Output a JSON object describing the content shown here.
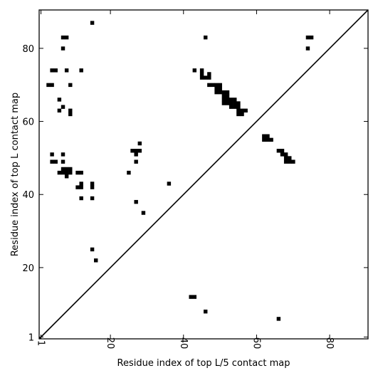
{
  "chart_data": {
    "type": "scatter",
    "xlabel": "Residue index of top L/5 contact map",
    "ylabel": "Residue index of top L contact map",
    "xlim": [
      0.5,
      90.5
    ],
    "ylim": [
      0.5,
      90.5
    ],
    "xticks": [
      1,
      20,
      40,
      60,
      80
    ],
    "yticks": [
      1,
      20,
      40,
      60,
      80
    ],
    "grid": false,
    "diagonal": true,
    "marker_color": "#000000",
    "upper_triangle": [
      [
        15,
        87
      ],
      [
        7,
        83
      ],
      [
        8,
        83
      ],
      [
        46,
        83
      ],
      [
        7,
        80
      ],
      [
        74,
        83
      ],
      [
        75,
        83
      ],
      [
        74,
        80
      ],
      [
        4,
        74
      ],
      [
        5,
        74
      ],
      [
        8,
        74
      ],
      [
        12,
        74
      ],
      [
        43,
        74
      ],
      [
        45,
        74
      ],
      [
        47,
        73
      ],
      [
        45,
        73
      ],
      [
        45,
        72
      ],
      [
        46,
        72
      ],
      [
        47,
        72
      ],
      [
        3,
        70
      ],
      [
        4,
        70
      ],
      [
        9,
        70
      ],
      [
        47,
        70
      ],
      [
        48,
        70
      ],
      [
        49,
        70
      ],
      [
        50,
        70
      ],
      [
        49,
        69
      ],
      [
        50,
        69
      ],
      [
        49,
        68
      ],
      [
        50,
        68
      ],
      [
        51,
        68
      ],
      [
        52,
        68
      ],
      [
        51,
        67
      ],
      [
        52,
        67
      ],
      [
        51,
        66
      ],
      [
        52,
        66
      ],
      [
        53,
        66
      ],
      [
        54,
        66
      ],
      [
        51,
        65
      ],
      [
        52,
        65
      ],
      [
        53,
        65
      ],
      [
        54,
        65
      ],
      [
        55,
        65
      ],
      [
        53,
        64
      ],
      [
        54,
        64
      ],
      [
        55,
        64
      ],
      [
        55,
        63
      ],
      [
        56,
        63
      ],
      [
        57,
        63
      ],
      [
        55,
        62
      ],
      [
        56,
        62
      ],
      [
        6,
        66
      ],
      [
        6,
        63
      ],
      [
        7,
        64
      ],
      [
        9,
        63
      ],
      [
        9,
        62
      ],
      [
        28,
        54
      ],
      [
        62,
        56
      ],
      [
        63,
        56
      ],
      [
        62,
        55
      ],
      [
        63,
        55
      ],
      [
        64,
        55
      ],
      [
        26,
        52
      ],
      [
        27,
        52
      ],
      [
        28,
        52
      ],
      [
        66,
        52
      ],
      [
        67,
        52
      ],
      [
        27,
        51
      ],
      [
        67,
        51
      ],
      [
        68,
        51
      ],
      [
        4,
        51
      ],
      [
        7,
        51
      ],
      [
        68,
        50
      ],
      [
        69,
        50
      ],
      [
        68,
        49
      ],
      [
        69,
        49
      ],
      [
        70,
        49
      ],
      [
        4,
        49
      ],
      [
        5,
        49
      ],
      [
        7,
        49
      ],
      [
        27,
        49
      ],
      [
        7,
        47
      ],
      [
        8,
        47
      ],
      [
        9,
        47
      ],
      [
        6,
        46
      ],
      [
        7,
        46
      ],
      [
        8,
        46
      ],
      [
        9,
        46
      ],
      [
        11,
        46
      ],
      [
        12,
        46
      ],
      [
        25,
        46
      ],
      [
        8,
        45
      ],
      [
        12,
        43
      ],
      [
        15,
        43
      ],
      [
        36,
        43
      ],
      [
        11,
        42
      ],
      [
        12,
        42
      ],
      [
        15,
        42
      ],
      [
        12,
        39
      ],
      [
        15,
        39
      ],
      [
        27,
        38
      ],
      [
        29,
        35
      ],
      [
        15,
        25
      ],
      [
        16,
        22
      ]
    ],
    "lower_triangle": [
      [
        42,
        12
      ],
      [
        43,
        12
      ],
      [
        46,
        8
      ],
      [
        66,
        6
      ]
    ]
  }
}
